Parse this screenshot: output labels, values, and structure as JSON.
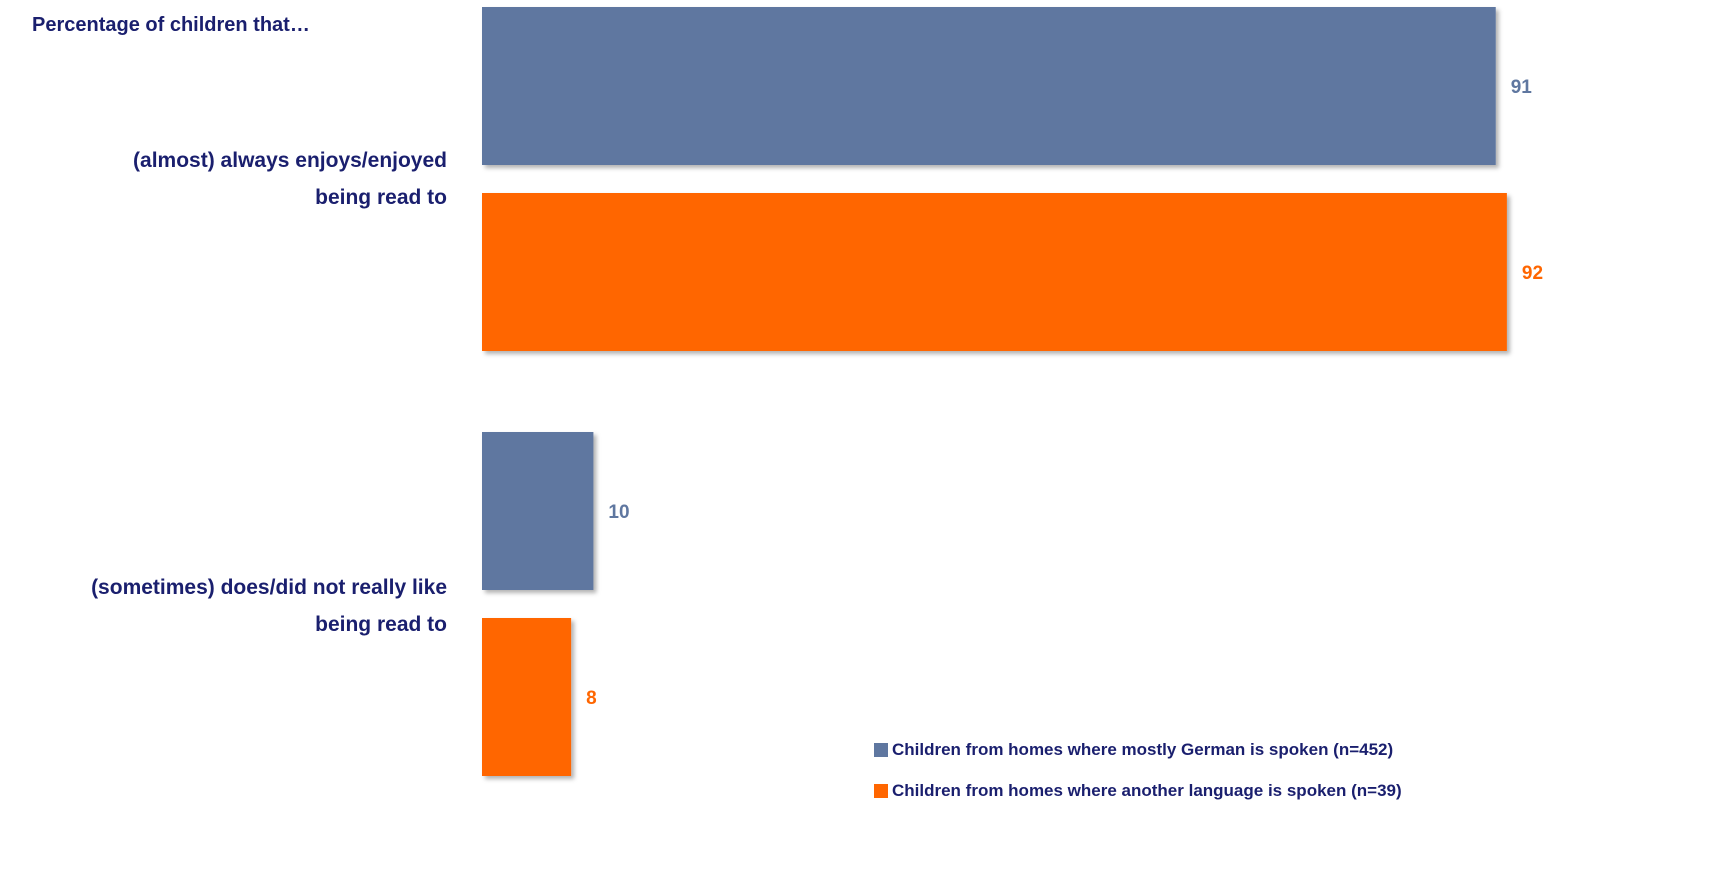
{
  "chart_data": {
    "type": "bar",
    "orientation": "horizontal",
    "title": "Percentage of children that…",
    "categories": [
      "(almost) always enjoys/enjoyed being read to",
      "(sometimes) does/did not really like being read to"
    ],
    "category_lines": [
      [
        "(almost) always enjoys/enjoyed",
        "being read to"
      ],
      [
        "(sometimes) does/did not really like",
        "being read to"
      ]
    ],
    "series": [
      {
        "name": "Children from homes where mostly German is spoken (n=452)",
        "color": "#5f77a0",
        "values": [
          91,
          10
        ]
      },
      {
        "name": "Children from homes where another language is spoken (n=39)",
        "color": "#ff6600",
        "values": [
          92,
          8
        ]
      }
    ],
    "xlim": [
      0,
      100
    ],
    "grid": false,
    "data_labels": true,
    "legend_position": "bottom-right"
  }
}
